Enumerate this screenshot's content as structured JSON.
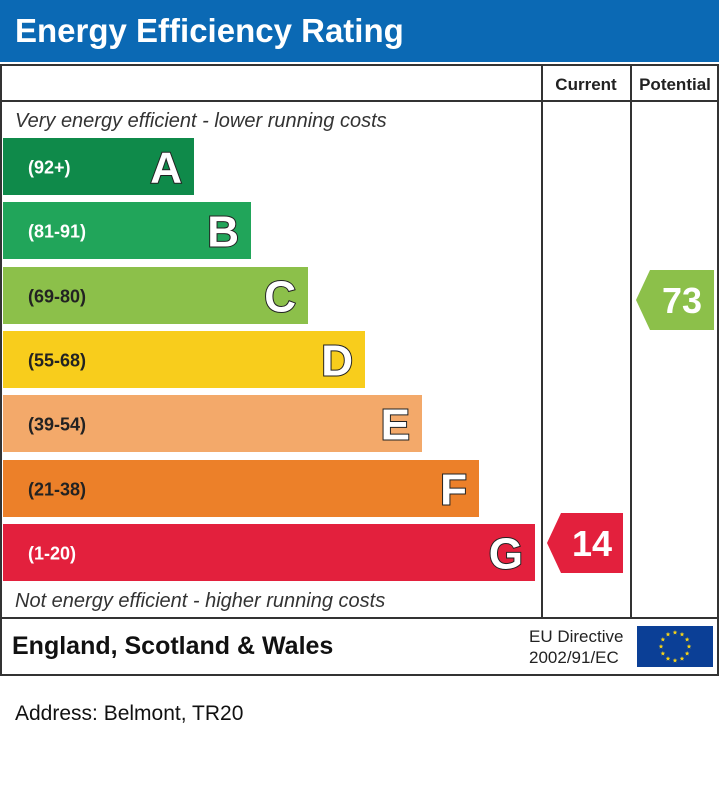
{
  "header": {
    "title": "Energy Efficiency Rating"
  },
  "columns": {
    "current": "Current",
    "potential": "Potential"
  },
  "top_note": "Very energy efficient - lower running costs",
  "bottom_note": "Not energy efficient - higher running costs",
  "footer": {
    "region": "England, Scotland & Wales",
    "directive_line1": "EU Directive",
    "directive_line2": "2002/91/EC"
  },
  "flag_icon": "eu-flag-icon",
  "address": "Address: Belmont, TR20",
  "chart_data": {
    "type": "bar",
    "bands": [
      {
        "letter": "A",
        "range": "(92+)",
        "color": "#0f8a4a"
      },
      {
        "letter": "B",
        "range": "(81-91)",
        "color": "#21a55a"
      },
      {
        "letter": "C",
        "range": "(69-80)",
        "color": "#8cc04a"
      },
      {
        "letter": "D",
        "range": "(55-68)",
        "color": "#f8cd1c"
      },
      {
        "letter": "E",
        "range": "(39-54)",
        "color": "#f3a96a"
      },
      {
        "letter": "F",
        "range": "(21-38)",
        "color": "#ec8029"
      },
      {
        "letter": "G",
        "range": "(1-20)",
        "color": "#e3203d"
      }
    ],
    "current": {
      "value": 14,
      "band": "G",
      "color": "#e3203d"
    },
    "potential": {
      "value": 73,
      "band": "C",
      "color": "#8cc04a"
    }
  }
}
